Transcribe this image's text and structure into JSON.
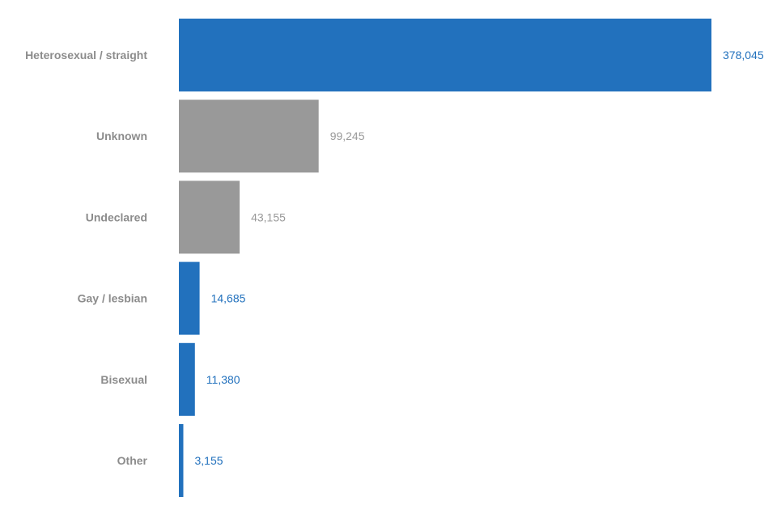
{
  "chart_data": {
    "type": "bar",
    "orientation": "horizontal",
    "title": "",
    "xlabel": "",
    "ylabel": "",
    "categories": [
      "Heterosexual / straight",
      "Unknown",
      "Undeclared",
      "Gay / lesbian",
      "Bisexual",
      "Other"
    ],
    "values": [
      378045,
      99245,
      43155,
      14685,
      11380,
      3155
    ],
    "value_labels": [
      "378,045",
      "99,245",
      "43,155",
      "14,685",
      "11,380",
      "3,155"
    ],
    "bar_colors": [
      "#2271bd",
      "#999999",
      "#999999",
      "#2271bd",
      "#2271bd",
      "#2271bd"
    ],
    "value_label_colors": [
      "#2271bd",
      "#999999",
      "#999999",
      "#2271bd",
      "#2271bd",
      "#2271bd"
    ],
    "category_label_color": "#8c8c8c",
    "xlim": [
      0,
      378045
    ],
    "grid": false,
    "legend": "none"
  }
}
